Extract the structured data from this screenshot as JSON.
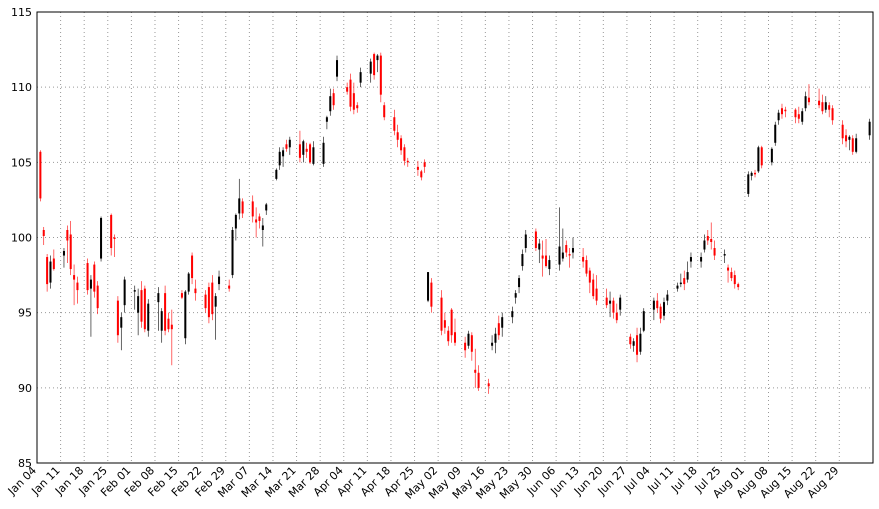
{
  "chart_data": {
    "type": "candlestick",
    "x": [
      "Jan 05",
      "Jan 06",
      "Jan 07",
      "Jan 08",
      "Jan 09",
      "Jan 12",
      "Jan 13",
      "Jan 14",
      "Jan 15",
      "Jan 16",
      "Jan 19",
      "Jan 20",
      "Jan 21",
      "Jan 22",
      "Jan 23",
      "Jan 26",
      "Jan 27",
      "Jan 28",
      "Jan 29",
      "Jan 30",
      "Feb 02",
      "Feb 03",
      "Feb 04",
      "Feb 05",
      "Feb 06",
      "Feb 09",
      "Feb 10",
      "Feb 11",
      "Feb 12",
      "Feb 13",
      "Feb 16",
      "Feb 17",
      "Feb 18",
      "Feb 19",
      "Feb 20",
      "Feb 23",
      "Feb 24",
      "Feb 25",
      "Feb 26",
      "Feb 27",
      "Mar 01",
      "Mar 02",
      "Mar 03",
      "Mar 04",
      "Mar 05",
      "Mar 08",
      "Mar 09",
      "Mar 10",
      "Mar 11",
      "Mar 12",
      "Mar 15",
      "Mar 16",
      "Mar 17",
      "Mar 18",
      "Mar 19",
      "Mar 22",
      "Mar 23",
      "Mar 24",
      "Mar 25",
      "Mar 26",
      "Mar 29",
      "Mar 30",
      "Mar 31",
      "Apr 01",
      "Apr 02",
      "Apr 05",
      "Apr 06",
      "Apr 07",
      "Apr 08",
      "Apr 09",
      "Apr 12",
      "Apr 13",
      "Apr 14",
      "Apr 15",
      "Apr 16",
      "Apr 19",
      "Apr 20",
      "Apr 21",
      "Apr 22",
      "Apr 23",
      "Apr 26",
      "Apr 27",
      "Apr 28",
      "Apr 29",
      "Apr 30",
      "May 03",
      "May 04",
      "May 05",
      "May 06",
      "May 07",
      "May 10",
      "May 11",
      "May 12",
      "May 13",
      "May 14",
      "May 17",
      "May 18",
      "May 19",
      "May 20",
      "May 21",
      "May 24",
      "May 25",
      "May 26",
      "May 27",
      "May 28",
      "May 31",
      "Jun 01",
      "Jun 02",
      "Jun 03",
      "Jun 04",
      "Jun 07",
      "Jun 08",
      "Jun 09",
      "Jun 10",
      "Jun 11",
      "Jun 14",
      "Jun 15",
      "Jun 16",
      "Jun 17",
      "Jun 18",
      "Jun 21",
      "Jun 22",
      "Jun 23",
      "Jun 24",
      "Jun 25",
      "Jun 28",
      "Jun 29",
      "Jun 30",
      "Jul 01",
      "Jul 02",
      "Jul 05",
      "Jul 06",
      "Jul 07",
      "Jul 08",
      "Jul 09",
      "Jul 12",
      "Jul 13",
      "Jul 14",
      "Jul 15",
      "Jul 16",
      "Jul 19",
      "Jul 20",
      "Jul 21",
      "Jul 22",
      "Jul 23",
      "Jul 26",
      "Jul 27",
      "Jul 28",
      "Jul 29",
      "Jul 30",
      "Aug 02",
      "Aug 03",
      "Aug 04",
      "Aug 05",
      "Aug 06",
      "Aug 09",
      "Aug 10",
      "Aug 11",
      "Aug 12",
      "Aug 13",
      "Aug 16",
      "Aug 17",
      "Aug 18",
      "Aug 19",
      "Aug 20",
      "Aug 23",
      "Aug 24",
      "Aug 25",
      "Aug 26",
      "Aug 27",
      "Aug 30",
      "Aug 31",
      "Sep 01",
      "Sep 02",
      "Sep 03",
      "Sep 07"
    ],
    "open": [
      105.7,
      100.5,
      98.7,
      97.0,
      98.6,
      98.8,
      100.5,
      100.2,
      97.5,
      97.0,
      98.3,
      96.6,
      98.2,
      96.8,
      98.6,
      101.5,
      100.0,
      95.8,
      94.0,
      95.5,
      96.4,
      95.0,
      96.5,
      96.6,
      93.8,
      95.7,
      93.8,
      96.3,
      94.6,
      94.2,
      96.3,
      93.3,
      96.4,
      98.8,
      96.6,
      96.2,
      96.7,
      97.0,
      95.4,
      96.9,
      96.8,
      97.5,
      100.6,
      101.6,
      102.4,
      102.4,
      101.2,
      101.4,
      100.5,
      101.8,
      103.9,
      104.8,
      105.4,
      106.2,
      106.0,
      106.2,
      105.5,
      105.9,
      106.2,
      104.9,
      104.9,
      107.7,
      108.4,
      109.6,
      110.7,
      110.0,
      110.5,
      109.6,
      108.8,
      110.3,
      110.9,
      112.2,
      111.8,
      112.1,
      108.8,
      108.0,
      107.0,
      106.6,
      106.0,
      105.1,
      104.7,
      104.4,
      105.0,
      95.8,
      97.0,
      96.0,
      94.5,
      93.8,
      95.2,
      93.7,
      93.0,
      92.8,
      93.5,
      91.2,
      91.0,
      90.3,
      92.8,
      93.0,
      94.3,
      94.0,
      94.7,
      96.0,
      96.7,
      98.1,
      99.3,
      100.4,
      99.2,
      98.8,
      98.8,
      97.9,
      98.2,
      98.6,
      99.5,
      98.9,
      99.0,
      98.7,
      98.5,
      97.8,
      97.2,
      96.6,
      96.0,
      95.6,
      95.8,
      95.0,
      95.2,
      93.4,
      92.8,
      93.5,
      92.4,
      93.8,
      95.2,
      95.8,
      95.4,
      94.8,
      95.8,
      96.6,
      96.9,
      97.3,
      97.2,
      98.4,
      98.4,
      99.2,
      100.1,
      99.9,
      99.3,
      98.8,
      98.0,
      97.7,
      97.5,
      96.9,
      102.9,
      104.1,
      104.3,
      104.4,
      106.0,
      105.0,
      106.3,
      107.8,
      108.6,
      108.5,
      108.5,
      108.2,
      107.7,
      108.6,
      109.3,
      109.1,
      109.0,
      108.5,
      108.8,
      108.6,
      107.5,
      106.8,
      106.5,
      106.6,
      105.7,
      106.8
    ],
    "high": [
      105.8,
      100.7,
      98.9,
      98.8,
      99.2,
      99.3,
      100.8,
      101.1,
      98.2,
      97.4,
      98.6,
      97.5,
      98.4,
      97.1,
      101.4,
      101.6,
      100.2,
      96.1,
      95.0,
      97.4,
      96.8,
      96.6,
      97.1,
      96.8,
      95.9,
      96.7,
      95.3,
      96.8,
      95.0,
      95.2,
      96.5,
      96.5,
      97.7,
      99.0,
      97.2,
      96.5,
      97.0,
      97.5,
      96.3,
      97.8,
      97.2,
      100.7,
      101.6,
      103.9,
      102.6,
      102.8,
      102.0,
      101.6,
      101.3,
      102.3,
      104.6,
      106.0,
      106.0,
      106.5,
      106.7,
      107.1,
      106.5,
      106.3,
      106.3,
      106.4,
      106.7,
      108.1,
      109.9,
      109.9,
      112.1,
      110.3,
      110.9,
      110.3,
      109.0,
      111.3,
      111.9,
      112.3,
      112.2,
      112.3,
      109.0,
      108.5,
      107.5,
      106.8,
      106.2,
      105.3,
      105.1,
      104.5,
      105.2,
      97.7,
      97.3,
      96.5,
      95.0,
      94.1,
      95.3,
      94.6,
      93.4,
      93.8,
      93.7,
      92.6,
      91.5,
      90.6,
      93.5,
      94.0,
      94.8,
      95.0,
      95.4,
      96.5,
      97.5,
      99.2,
      100.5,
      100.6,
      99.9,
      99.8,
      99.9,
      98.8,
      102.0,
      100.6,
      99.8,
      99.3,
      100.0,
      99.3,
      98.8,
      98.0,
      97.6,
      97.5,
      96.6,
      96.4,
      96.0,
      95.6,
      96.2,
      93.6,
      93.3,
      94.0,
      94.0,
      95.3,
      96.0,
      96.3,
      95.6,
      96.0,
      96.5,
      97.0,
      97.6,
      97.8,
      98.4,
      99.0,
      99.0,
      100.2,
      100.5,
      101.0,
      99.8,
      99.2,
      98.2,
      98.0,
      97.8,
      97.0,
      104.4,
      104.4,
      104.5,
      106.1,
      106.1,
      106.0,
      107.7,
      108.5,
      108.9,
      108.7,
      108.6,
      108.7,
      108.6,
      109.7,
      110.2,
      109.9,
      109.5,
      109.4,
      109.0,
      108.8,
      107.8,
      107.2,
      106.8,
      106.8,
      106.9,
      107.9
    ],
    "low": [
      102.4,
      99.5,
      96.4,
      96.6,
      97.8,
      98.0,
      98.3,
      97.5,
      95.5,
      95.6,
      96.2,
      93.4,
      96.0,
      94.9,
      98.4,
      98.8,
      98.7,
      93.0,
      92.5,
      95.0,
      95.2,
      93.5,
      94.0,
      93.7,
      93.4,
      93.8,
      93.0,
      93.5,
      93.7,
      91.5,
      95.9,
      92.9,
      96.2,
      96.9,
      95.8,
      95.0,
      94.3,
      94.5,
      93.2,
      96.5,
      96.4,
      97.3,
      99.8,
      101.2,
      101.3,
      101.0,
      100.0,
      100.6,
      99.4,
      101.5,
      103.8,
      104.5,
      104.7,
      105.7,
      105.5,
      105.0,
      105.0,
      105.3,
      104.9,
      104.8,
      104.7,
      107.2,
      108.1,
      108.5,
      110.4,
      109.5,
      108.4,
      108.2,
      108.3,
      110.0,
      110.3,
      110.5,
      111.0,
      109.0,
      107.8,
      106.8,
      106.0,
      105.5,
      104.8,
      104.7,
      104.1,
      103.8,
      104.3,
      95.7,
      95.0,
      93.5,
      93.6,
      92.8,
      93.0,
      92.8,
      92.0,
      92.6,
      91.8,
      90.0,
      89.8,
      89.6,
      92.5,
      92.3,
      93.2,
      93.4,
      94.3,
      95.6,
      96.3,
      97.8,
      99.0,
      99.1,
      98.3,
      97.4,
      98.0,
      97.5,
      97.8,
      98.4,
      98.7,
      98.0,
      98.6,
      98.0,
      97.4,
      96.3,
      95.9,
      95.5,
      95.3,
      94.7,
      94.6,
      94.3,
      94.8,
      92.6,
      92.4,
      91.7,
      92.2,
      93.7,
      94.5,
      95.0,
      94.3,
      94.5,
      95.5,
      96.4,
      96.7,
      96.5,
      97.0,
      98.0,
      98.0,
      99.0,
      99.5,
      99.2,
      98.5,
      98.3,
      97.0,
      97.1,
      96.6,
      96.5,
      102.7,
      103.8,
      104.0,
      104.3,
      104.6,
      104.8,
      106.1,
      107.5,
      107.9,
      108.0,
      107.6,
      107.6,
      107.5,
      108.4,
      108.8,
      108.6,
      108.2,
      108.3,
      108.0,
      107.5,
      106.2,
      106.0,
      105.8,
      105.5,
      105.6,
      106.5
    ],
    "close": [
      102.6,
      100.1,
      96.9,
      98.4,
      97.9,
      99.1,
      99.8,
      97.9,
      97.2,
      96.5,
      96.5,
      97.2,
      96.4,
      95.3,
      101.3,
      99.3,
      99.9,
      93.5,
      94.7,
      97.2,
      96.5,
      96.1,
      94.4,
      93.9,
      95.6,
      96.3,
      95.1,
      93.8,
      93.9,
      93.9,
      96.0,
      96.4,
      97.6,
      97.3,
      96.3,
      95.3,
      94.7,
      94.9,
      96.1,
      97.4,
      96.6,
      100.5,
      101.5,
      102.6,
      101.6,
      101.4,
      101.0,
      101.1,
      100.8,
      102.2,
      104.5,
      105.7,
      105.8,
      105.9,
      106.5,
      105.3,
      106.4,
      105.7,
      105.0,
      106.0,
      106.3,
      108.0,
      109.4,
      108.8,
      111.8,
      109.7,
      108.7,
      108.5,
      108.6,
      111.0,
      111.7,
      110.8,
      112.1,
      109.5,
      108.0,
      107.1,
      106.5,
      105.8,
      105.1,
      105.0,
      104.5,
      104.0,
      104.7,
      97.7,
      95.4,
      93.8,
      94.0,
      93.1,
      93.5,
      93.0,
      92.5,
      93.6,
      92.4,
      91.0,
      90.0,
      90.1,
      93.0,
      93.6,
      93.5,
      94.7,
      95.1,
      96.3,
      97.3,
      98.9,
      100.2,
      99.3,
      99.6,
      98.6,
      98.1,
      98.5,
      99.4,
      99.0,
      99.0,
      98.8,
      99.3,
      98.4,
      97.6,
      97.0,
      96.1,
      95.8,
      95.5,
      95.8,
      95.0,
      94.5,
      96.0,
      92.9,
      93.1,
      92.2,
      93.6,
      95.1,
      95.8,
      95.3,
      94.6,
      95.7,
      96.2,
      96.8,
      97.0,
      96.9,
      97.7,
      98.7,
      98.7,
      99.8,
      99.8,
      99.7,
      98.8,
      98.9,
      97.8,
      97.3,
      96.9,
      96.7,
      104.2,
      104.3,
      104.2,
      106.0,
      104.8,
      105.9,
      107.5,
      108.3,
      108.2,
      108.4,
      108.0,
      107.9,
      108.4,
      109.4,
      109.0,
      108.8,
      108.4,
      109.0,
      108.5,
      107.8,
      106.6,
      106.4,
      106.7,
      105.7,
      106.6,
      107.7
    ],
    "colorup": "#000000",
    "colordown": "#ff0000",
    "xlim": [
      "Jan 04",
      "Sep 08"
    ],
    "xticks": [
      "Jan 04",
      "Jan 11",
      "Jan 18",
      "Jan 25",
      "Feb 01",
      "Feb 08",
      "Feb 15",
      "Feb 22",
      "Feb 29",
      "Mar 07",
      "Mar 14",
      "Mar 21",
      "Mar 28",
      "Apr 04",
      "Apr 11",
      "Apr 18",
      "Apr 25",
      "May 02",
      "May 09",
      "May 16",
      "May 23",
      "May 30",
      "Jun 06",
      "Jun 13",
      "Jun 20",
      "Jun 27",
      "Jul 04",
      "Jul 11",
      "Jul 18",
      "Jul 25",
      "Aug 01",
      "Aug 08",
      "Aug 15",
      "Aug 22",
      "Aug 29"
    ],
    "ylim": [
      85,
      115
    ],
    "yticks": [
      85,
      90,
      95,
      100,
      105,
      110,
      115
    ],
    "grid": true
  }
}
